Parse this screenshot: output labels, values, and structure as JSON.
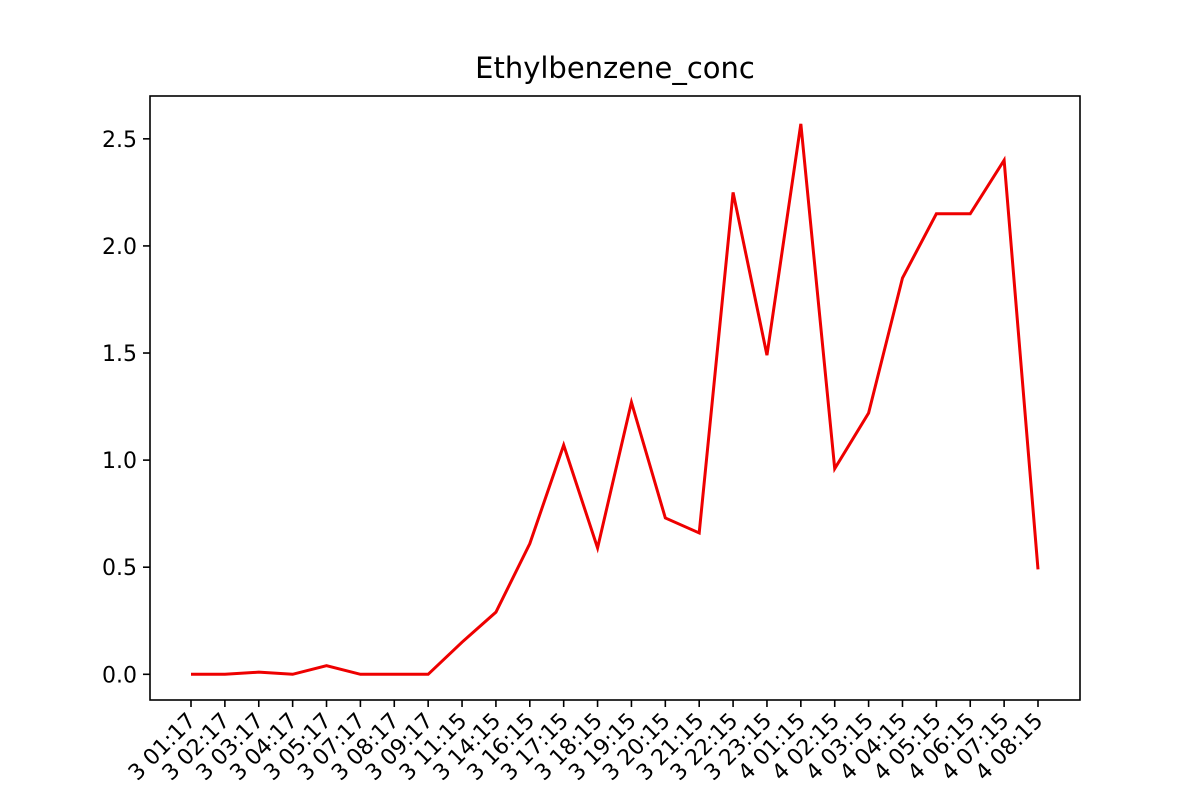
{
  "chart_data": {
    "type": "line",
    "title": "Ethylbenzene_conc",
    "xlabel": "",
    "ylabel": "",
    "ylim": [
      -0.12,
      2.7
    ],
    "yticks": [
      0.0,
      0.5,
      1.0,
      1.5,
      2.0,
      2.5
    ],
    "ytick_labels": [
      "0.0",
      "0.5",
      "1.0",
      "1.5",
      "2.0",
      "2.5"
    ],
    "x_tick_labels": [
      "3 01:17",
      "3 02:17",
      "3 03:17",
      "3 04:17",
      "3 05:17",
      "3 07:17",
      "3 08:17",
      "3 09:17",
      "3 11:15",
      "3 14:15",
      "3 16:15",
      "3 17:15",
      "3 18:15",
      "3 19:15",
      "3 20:15",
      "3 21:15",
      "3 22:15",
      "3 23:15",
      "4 01:15",
      "4 02:15",
      "4 03:15",
      "4 04:15",
      "4 05:15",
      "4 06:15",
      "4 07:15",
      "4 08:15"
    ],
    "grid": false,
    "series": [
      {
        "color": "#ee0000",
        "values": [
          0.0,
          0.0,
          0.01,
          0.0,
          0.04,
          0.0,
          0.0,
          0.0,
          0.15,
          0.29,
          0.61,
          1.07,
          0.59,
          1.27,
          0.73,
          0.66,
          2.25,
          1.49,
          2.57,
          0.96,
          1.22,
          1.85,
          2.15,
          2.15,
          2.4,
          0.49
        ]
      }
    ]
  }
}
